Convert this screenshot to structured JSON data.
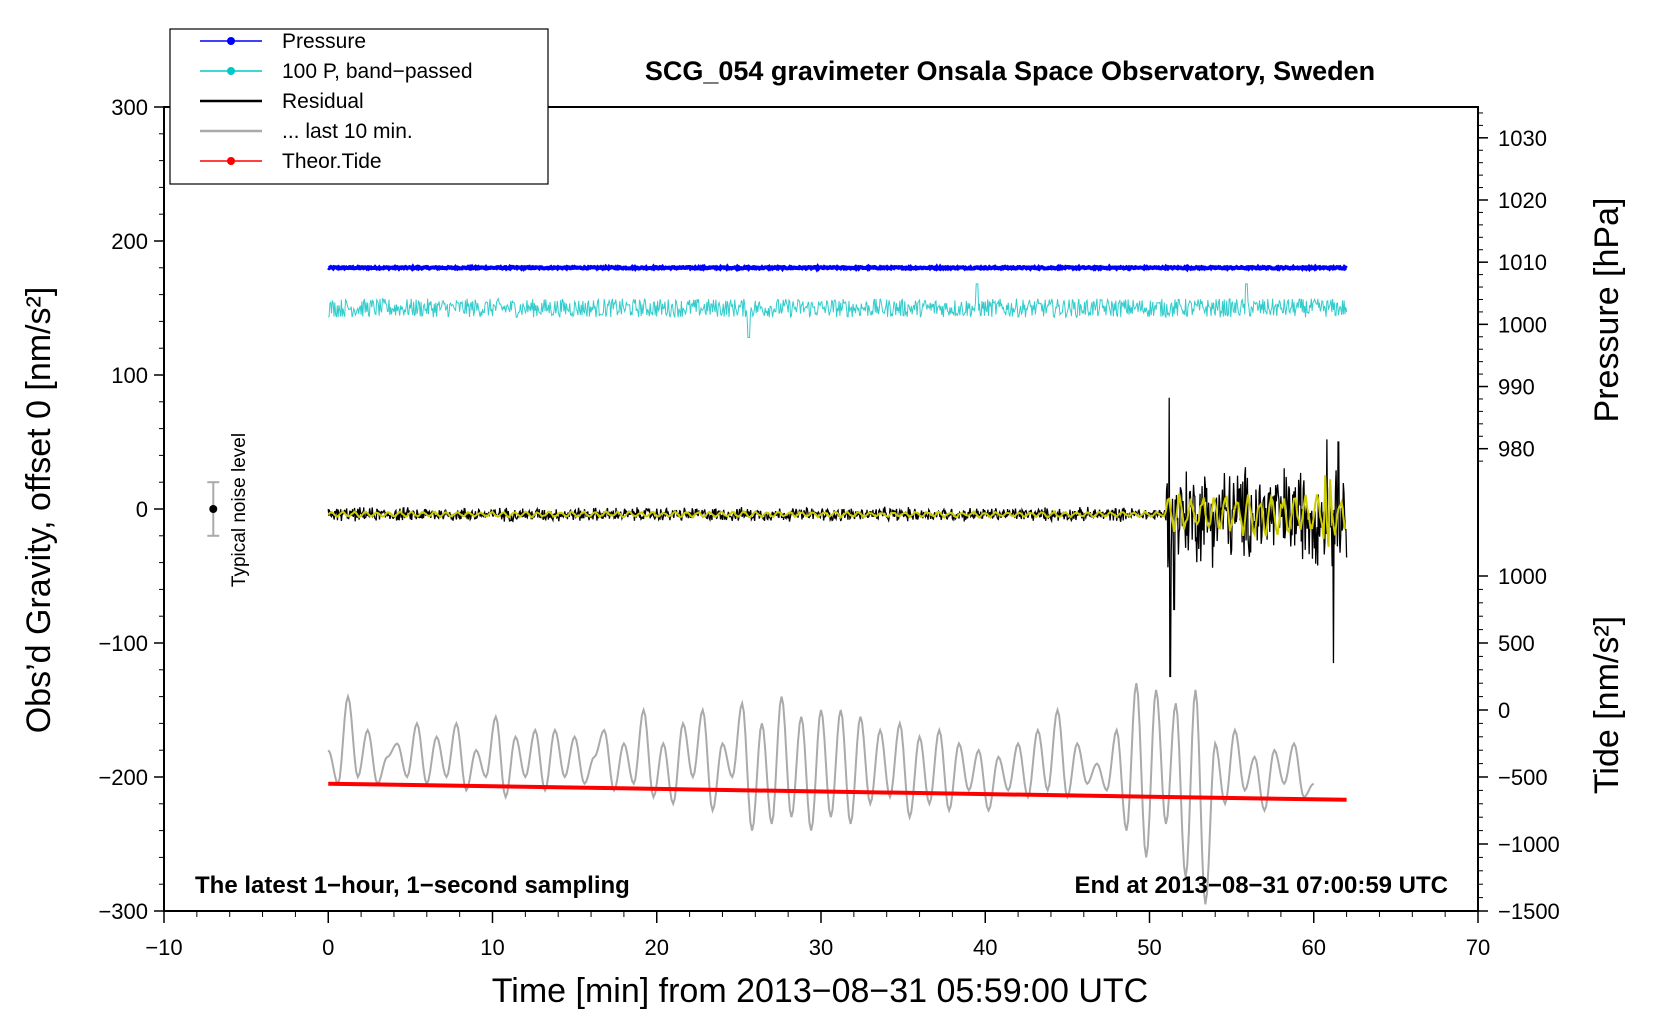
{
  "chart_data": {
    "type": "line",
    "title": "SCG_054 gravimeter Onsala Space Observatory, Sweden",
    "xlabel": "Time [min] from 2013−08−31 05:59:00 UTC",
    "ylabel": "Obs’d Gravity, offset 0 [nm/s²]",
    "xlim": [
      -10,
      70
    ],
    "ylim": [
      -300,
      300
    ],
    "xticks": [
      -10,
      0,
      10,
      20,
      30,
      40,
      50,
      60,
      70
    ],
    "xtick_labels": [
      "−10",
      "0",
      "10",
      "20",
      "30",
      "40",
      "50",
      "60",
      "70"
    ],
    "yticks": [
      -300,
      -200,
      -100,
      0,
      100,
      200,
      300
    ],
    "ytick_labels": [
      "−300",
      "−200",
      "−100",
      "0",
      "100",
      "200",
      "300"
    ],
    "right_axis_pressure": {
      "label": "Pressure [hPa]",
      "ticks": [
        980,
        990,
        1000,
        1010,
        1020,
        1030
      ],
      "tick_labels": [
        "980",
        "990",
        "1000",
        "1010",
        "1020",
        "1030"
      ],
      "mapping": {
        "value_a": 980,
        "gravity_a": 45,
        "value_b": 1030,
        "gravity_b": 277
      }
    },
    "right_axis_tide": {
      "label": "Tide [nm/s²]",
      "ticks": [
        -1500,
        -1000,
        -500,
        0,
        500,
        1000
      ],
      "tick_labels": [
        "−1500",
        "−1000",
        "−500",
        "0",
        "500",
        "1000"
      ],
      "mapping": {
        "value_a": -1500,
        "gravity_a": -300,
        "value_b": 1000,
        "gravity_b": -50
      }
    },
    "legend": {
      "position": "top-left",
      "entries": [
        {
          "label": "Pressure",
          "color": "#0000ff",
          "marker": "dot"
        },
        {
          "label": "100 P, band−passed",
          "color": "#00c8c8",
          "marker": "dot"
        },
        {
          "label": "Residual",
          "color": "#000000",
          "marker": "none"
        },
        {
          "label": "... last 10 min.",
          "color": "#aaaaaa",
          "marker": "none"
        },
        {
          "label": "Theor.Tide",
          "color": "#ff0000",
          "marker": "dot"
        }
      ]
    },
    "series": [
      {
        "name": "Pressure",
        "color": "#0000ff",
        "x_range": [
          0,
          62
        ],
        "gravity_value": 180,
        "pressure_hPa": 1008.5
      },
      {
        "name": "100 P, band−passed",
        "color": "#33cccc",
        "x_range": [
          0,
          62
        ],
        "center": 150,
        "amplitude": 7,
        "spikes": [
          [
            25.6,
            -22
          ],
          [
            39.5,
            18
          ],
          [
            55.9,
            18
          ],
          [
            0,
            0
          ]
        ]
      },
      {
        "name": "Residual",
        "color": "#000000",
        "x_range": [
          0,
          62
        ],
        "segments": [
          {
            "x_range": [
              0,
              51.0
            ],
            "center": -4,
            "amplitude": 4
          },
          {
            "x_range": [
              51.0,
              62
            ],
            "center": -4,
            "amplitude": 28
          }
        ],
        "spikes": [
          [
            51.2,
            83
          ],
          [
            51.25,
            -125
          ],
          [
            51.5,
            -75
          ],
          [
            61.2,
            -115
          ],
          [
            61.5,
            50
          ],
          [
            60.8,
            52
          ]
        ]
      },
      {
        "name": "Residual (filtered)",
        "color": "#cccc00",
        "x_range": [
          0,
          62
        ],
        "center": -4,
        "amplitude": 2
      },
      {
        "name": "... last 10 min.",
        "color": "#aaaaaa",
        "x": [
          0.0,
          0.6,
          1.2,
          1.8,
          2.4,
          3.0,
          3.6,
          4.2,
          4.8,
          5.4,
          6.0,
          6.6,
          7.2,
          7.8,
          8.4,
          9.0,
          9.6,
          10.2,
          10.8,
          11.4,
          12.0,
          12.6,
          13.2,
          13.8,
          14.4,
          15.0,
          15.6,
          16.2,
          16.8,
          17.4,
          18.0,
          18.6,
          19.2,
          19.8,
          20.4,
          21.0,
          21.6,
          22.2,
          22.8,
          23.4,
          24.0,
          24.6,
          25.2,
          25.8,
          26.4,
          27.0,
          27.6,
          28.2,
          28.8,
          29.4,
          30.0,
          30.6,
          31.2,
          31.8,
          32.4,
          33.0,
          33.6,
          34.2,
          34.8,
          35.4,
          36.0,
          36.6,
          37.2,
          37.8,
          38.4,
          39.0,
          39.6,
          40.2,
          40.8,
          41.4,
          42.0,
          42.6,
          43.2,
          43.8,
          44.4,
          45.0,
          45.6,
          46.2,
          46.8,
          47.4,
          48.0,
          48.6,
          49.2,
          49.8,
          50.4,
          51.0,
          51.6,
          52.2,
          52.8,
          53.4,
          54.0,
          54.6,
          55.2,
          55.8,
          56.4,
          57.0,
          57.6,
          58.2,
          58.8,
          59.4,
          60.0
        ],
        "values": [
          -180,
          -205,
          -140,
          -200,
          -165,
          -205,
          -185,
          -175,
          -200,
          -160,
          -205,
          -170,
          -200,
          -160,
          -210,
          -180,
          -200,
          -155,
          -215,
          -170,
          -200,
          -165,
          -210,
          -165,
          -200,
          -170,
          -205,
          -185,
          -165,
          -210,
          -175,
          -205,
          -150,
          -215,
          -175,
          -220,
          -160,
          -200,
          -150,
          -225,
          -175,
          -200,
          -145,
          -240,
          -160,
          -235,
          -140,
          -230,
          -155,
          -240,
          -150,
          -230,
          -150,
          -235,
          -155,
          -220,
          -165,
          -215,
          -160,
          -230,
          -170,
          -220,
          -165,
          -225,
          -175,
          -210,
          -180,
          -225,
          -185,
          -210,
          -175,
          -215,
          -165,
          -210,
          -150,
          -215,
          -175,
          -205,
          -190,
          -210,
          -165,
          -240,
          -130,
          -260,
          -135,
          -235,
          -145,
          -275,
          -135,
          -295,
          -175,
          -220,
          -165,
          -210,
          -185,
          -225,
          -180,
          -205,
          -175,
          -215,
          -205
        ]
      },
      {
        "name": "Theor.Tide",
        "color": "#ff0000",
        "x": [
          0,
          62
        ],
        "values": [
          -205,
          -217
        ]
      }
    ],
    "noise_level": {
      "label": "Typical noise level",
      "x": -7,
      "center": 0,
      "low": -20,
      "high": 20
    },
    "annotations": {
      "bottom_left": "The latest 1−hour, 1−second sampling",
      "bottom_right": "End at 2013−08−31 07:00:59 UTC"
    }
  }
}
